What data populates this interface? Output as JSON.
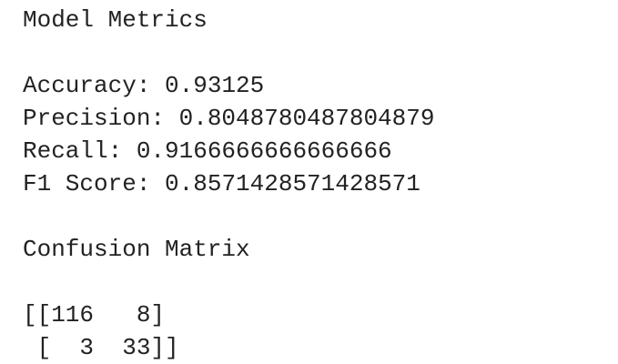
{
  "heading": "Model Metrics",
  "metrics": [
    {
      "label": "Accuracy:",
      "value": 0.93125
    },
    {
      "label": "Precision:",
      "value": 0.8048780487804879
    },
    {
      "label": "Recall:",
      "value": 0.9166666666666666
    },
    {
      "label": "F1 Score:",
      "value": 0.8571428571428571
    }
  ],
  "confusion": {
    "heading": "Confusion Matrix",
    "lines": [
      "[[116   8]",
      " [  3  33]]"
    ]
  }
}
